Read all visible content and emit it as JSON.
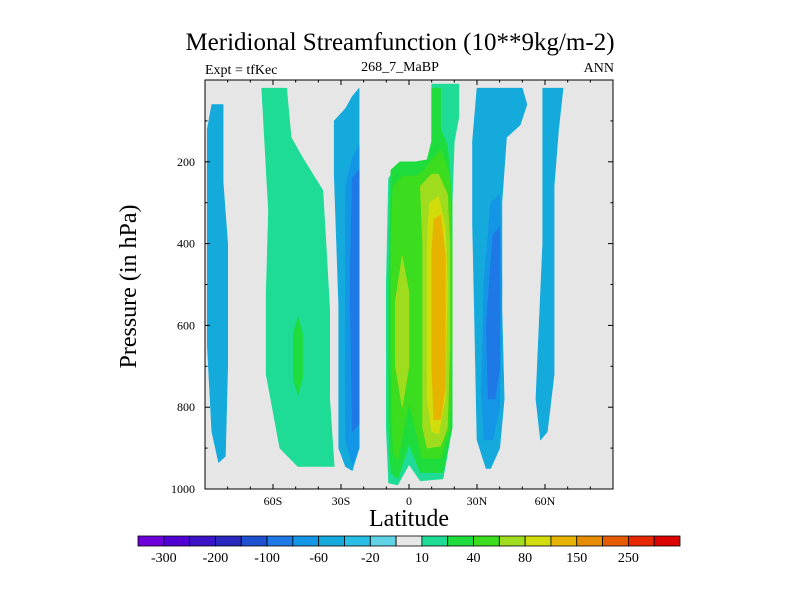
{
  "chart_data": {
    "type": "heatmap",
    "title": "Meridional Streamfunction (10**9kg/m-2)",
    "left_string": "Expt = tfKec",
    "center_string": "268_7_MaBP",
    "right_string": "ANN",
    "xlabel": "Latitude",
    "ylabel": "Pressure (in hPa)",
    "x_ticks": [
      {
        "value": -60,
        "label": "60S"
      },
      {
        "value": -30,
        "label": "30S"
      },
      {
        "value": 0,
        "label": "0"
      },
      {
        "value": 30,
        "label": "30N"
      },
      {
        "value": 60,
        "label": "60N"
      }
    ],
    "y_ticks": [
      {
        "value": 200,
        "label": "200"
      },
      {
        "value": 400,
        "label": "400"
      },
      {
        "value": 600,
        "label": "600"
      },
      {
        "value": 800,
        "label": "800"
      },
      {
        "value": 1000,
        "label": "1000"
      }
    ],
    "xlim": [
      -90,
      90
    ],
    "ylim": [
      1000,
      0
    ],
    "y_reversed": true,
    "background_color": "#e6e6e6",
    "colorbar": {
      "levels": [
        -300,
        -250,
        -200,
        -150,
        -100,
        -80,
        -60,
        -40,
        -20,
        -10,
        10,
        20,
        40,
        60,
        80,
        100,
        150,
        200,
        250,
        300
      ],
      "labels": [
        "-300",
        "-200",
        "-100",
        "-60",
        "-20",
        "10",
        "40",
        "80",
        "150",
        "250"
      ],
      "colors": [
        "#6e00dc",
        "#5000d2",
        "#3c14c8",
        "#2828be",
        "#1e50d2",
        "#1e78e6",
        "#1496e6",
        "#14aadc",
        "#28bee6",
        "#5fd2e6",
        "#e6e6e6",
        "#1edc96",
        "#1edc3c",
        "#3cdc1e",
        "#a0dc1e",
        "#d2dc0a",
        "#e6b400",
        "#e68c00",
        "#e65a00",
        "#e62800",
        "#dc0000"
      ]
    },
    "features": [
      {
        "level": -20,
        "color": "#14aadc",
        "points": [
          [
            -87,
            60
          ],
          [
            -82,
            60
          ],
          [
            -82,
            250
          ],
          [
            -80,
            400
          ],
          [
            -80,
            700
          ],
          [
            -81,
            920
          ],
          [
            -84,
            935
          ],
          [
            -87,
            860
          ],
          [
            -89,
            650
          ],
          [
            -89,
            120
          ]
        ]
      },
      {
        "level": 10,
        "color": "#1edc96",
        "points": [
          [
            -65,
            20
          ],
          [
            -54,
            20
          ],
          [
            -52,
            140
          ],
          [
            -47,
            190
          ],
          [
            -38,
            270
          ],
          [
            -35,
            560
          ],
          [
            -35,
            780
          ],
          [
            -33,
            945
          ],
          [
            -49,
            945
          ],
          [
            -57,
            900
          ],
          [
            -63,
            720
          ],
          [
            -63,
            520
          ],
          [
            -62,
            320
          ]
        ]
      },
      {
        "level": 20,
        "color": "#1edc3c",
        "points": [
          [
            -49,
            580
          ],
          [
            -47,
            620
          ],
          [
            -47,
            730
          ],
          [
            -49,
            770
          ],
          [
            -51,
            730
          ],
          [
            -51,
            620
          ]
        ]
      },
      {
        "level": -20,
        "color": "#14aadc",
        "points": [
          [
            -28,
            70
          ],
          [
            -25,
            40
          ],
          [
            -22,
            20
          ],
          [
            -22,
            280
          ],
          [
            -22,
            900
          ],
          [
            -25,
            955
          ],
          [
            -28,
            945
          ],
          [
            -31,
            900
          ],
          [
            -31,
            550
          ],
          [
            -33,
            230
          ],
          [
            -33,
            100
          ]
        ]
      },
      {
        "level": -40,
        "color": "#1496e6",
        "points": [
          [
            -22,
            160
          ],
          [
            -22,
            900
          ],
          [
            -25,
            940
          ],
          [
            -28,
            880
          ],
          [
            -28,
            260
          ],
          [
            -25,
            190
          ]
        ]
      },
      {
        "level": -60,
        "color": "#1e78e6",
        "points": [
          [
            -22,
            220
          ],
          [
            -22,
            840
          ],
          [
            -25,
            860
          ],
          [
            -26,
            500
          ],
          [
            -25,
            240
          ]
        ]
      },
      {
        "level": -20,
        "color": "#14aadc",
        "points": [
          [
            59,
            20
          ],
          [
            68,
            20
          ],
          [
            66,
            120
          ],
          [
            64,
            260
          ],
          [
            64,
            720
          ],
          [
            61,
            860
          ],
          [
            58,
            880
          ],
          [
            56,
            780
          ],
          [
            59,
            400
          ]
        ]
      },
      {
        "level": -20,
        "color": "#14aadc",
        "points": [
          [
            28,
            150
          ],
          [
            30,
            20
          ],
          [
            50,
            20
          ],
          [
            52,
            60
          ],
          [
            49,
            110
          ],
          [
            43,
            140
          ],
          [
            41,
            300
          ],
          [
            41,
            560
          ],
          [
            42,
            780
          ],
          [
            40,
            900
          ],
          [
            36,
            950
          ],
          [
            34,
            950
          ],
          [
            30,
            880
          ],
          [
            29,
            600
          ],
          [
            28,
            350
          ]
        ]
      },
      {
        "level": -40,
        "color": "#1496e6",
        "points": [
          [
            36,
            300
          ],
          [
            40,
            280
          ],
          [
            41,
            500
          ],
          [
            40,
            800
          ],
          [
            37,
            880
          ],
          [
            33,
            880
          ],
          [
            32,
            760
          ],
          [
            33,
            500
          ]
        ]
      },
      {
        "level": -60,
        "color": "#1e78e6",
        "points": [
          [
            37,
            380
          ],
          [
            40,
            360
          ],
          [
            40,
            700
          ],
          [
            38,
            780
          ],
          [
            35,
            780
          ],
          [
            34,
            600
          ]
        ]
      },
      {
        "level": 10,
        "color": "#1edc96",
        "points": [
          [
            -9,
            240
          ],
          [
            -5,
            210
          ],
          [
            0,
            210
          ],
          [
            5,
            215
          ],
          [
            8,
            200
          ],
          [
            10,
            150
          ],
          [
            10,
            10
          ],
          [
            22,
            10
          ],
          [
            22,
            90
          ],
          [
            20,
            150
          ],
          [
            19,
            300
          ],
          [
            19,
            600
          ],
          [
            19,
            850
          ],
          [
            15,
            975
          ],
          [
            5,
            980
          ],
          [
            0,
            940
          ],
          [
            -5,
            990
          ],
          [
            -9,
            985
          ],
          [
            -10,
            850
          ],
          [
            -10,
            500
          ]
        ]
      },
      {
        "level": 20,
        "color": "#1edc3c",
        "points": [
          [
            -8,
            220
          ],
          [
            -4,
            200
          ],
          [
            3,
            200
          ],
          [
            8,
            195
          ],
          [
            10,
            150
          ],
          [
            10,
            20
          ],
          [
            14,
            20
          ],
          [
            14,
            120
          ],
          [
            17,
            160
          ],
          [
            19,
            300
          ],
          [
            19,
            600
          ],
          [
            19,
            850
          ],
          [
            15,
            960
          ],
          [
            5,
            960
          ],
          [
            0,
            890
          ],
          [
            -5,
            975
          ],
          [
            -8,
            960
          ],
          [
            -9,
            850
          ],
          [
            -9,
            500
          ]
        ]
      },
      {
        "level": 40,
        "color": "#3cdc1e",
        "points": [
          [
            -7,
            260
          ],
          [
            -3,
            235
          ],
          [
            3,
            235
          ],
          [
            6,
            225
          ],
          [
            10,
            195
          ],
          [
            14,
            170
          ],
          [
            18,
            230
          ],
          [
            19,
            400
          ],
          [
            19,
            650
          ],
          [
            18,
            850
          ],
          [
            14,
            925
          ],
          [
            6,
            925
          ],
          [
            0,
            790
          ],
          [
            -5,
            930
          ],
          [
            -7,
            910
          ],
          [
            -8,
            650
          ],
          [
            -8,
            400
          ]
        ]
      },
      {
        "level": 60,
        "color": "#a0dc1e",
        "points": [
          [
            -6,
            540
          ],
          [
            -3,
            430
          ],
          [
            0,
            520
          ],
          [
            0,
            700
          ],
          [
            -3,
            800
          ],
          [
            -6,
            700
          ]
        ]
      },
      {
        "level": 60,
        "color": "#a0dc1e",
        "points": [
          [
            5,
            260
          ],
          [
            10,
            230
          ],
          [
            13,
            230
          ],
          [
            17,
            280
          ],
          [
            18,
            400
          ],
          [
            18,
            650
          ],
          [
            17,
            850
          ],
          [
            14,
            895
          ],
          [
            8,
            900
          ],
          [
            6,
            850
          ],
          [
            6,
            400
          ]
        ]
      },
      {
        "level": 80,
        "color": "#d2dc0a",
        "points": [
          [
            9,
            300
          ],
          [
            13,
            285
          ],
          [
            16,
            360
          ],
          [
            17,
            500
          ],
          [
            16,
            780
          ],
          [
            13,
            865
          ],
          [
            10,
            860
          ],
          [
            8,
            780
          ],
          [
            8,
            400
          ]
        ]
      },
      {
        "level": 100,
        "color": "#e6b400",
        "points": [
          [
            11,
            340
          ],
          [
            14,
            330
          ],
          [
            16,
            430
          ],
          [
            16,
            750
          ],
          [
            14,
            830
          ],
          [
            11,
            830
          ],
          [
            10,
            700
          ],
          [
            10,
            420
          ]
        ]
      }
    ]
  }
}
